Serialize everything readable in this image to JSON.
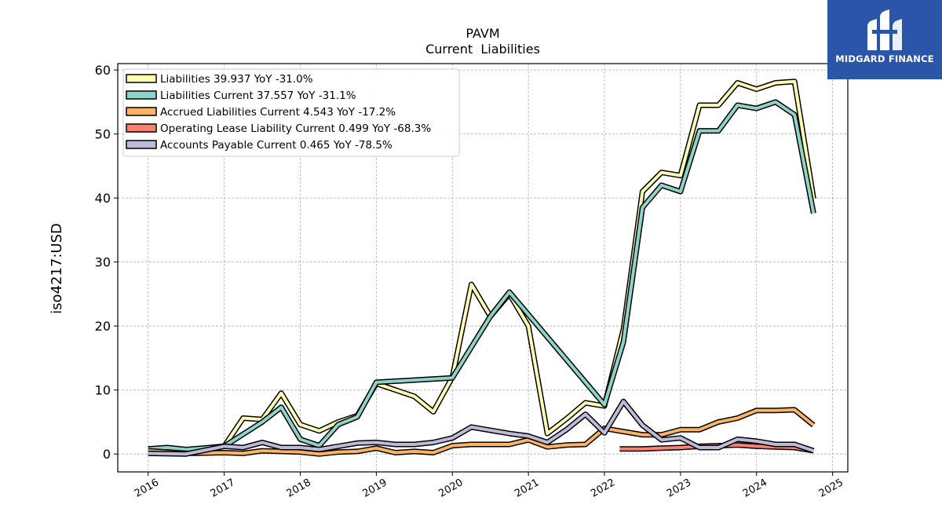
{
  "chart_data": {
    "type": "line",
    "title": "PAVM",
    "subtitle": "Current  Liabilities",
    "ylabel": "iso4217:USD",
    "xlabel": "",
    "ylim": [
      -2.8,
      61
    ],
    "xlim": [
      2015.6,
      2025.2
    ],
    "yticks": [
      0,
      10,
      20,
      30,
      40,
      50,
      60
    ],
    "xticks": [
      2016,
      2017,
      2018,
      2019,
      2020,
      2021,
      2022,
      2023,
      2024,
      2025
    ],
    "grid": true,
    "legend_position": "top-left",
    "series": [
      {
        "name": "Liabilities  39.937 YoY -31.0%",
        "color": "#ffffb3",
        "points": [
          [
            2016.0,
            0.8
          ],
          [
            2016.5,
            0.6
          ],
          [
            2017.0,
            1.2
          ],
          [
            2017.25,
            5.6
          ],
          [
            2017.5,
            5.4
          ],
          [
            2017.75,
            9.5
          ],
          [
            2018.0,
            4.6
          ],
          [
            2018.25,
            3.6
          ],
          [
            2018.5,
            5.0
          ],
          [
            2018.75,
            6.0
          ],
          [
            2019.0,
            11.0
          ],
          [
            2019.5,
            9.0
          ],
          [
            2019.75,
            6.6
          ],
          [
            2020.0,
            12.0
          ],
          [
            2020.25,
            26.5
          ],
          [
            2020.5,
            21.5
          ],
          [
            2020.75,
            25.0
          ],
          [
            2021.0,
            20.0
          ],
          [
            2021.25,
            3.2
          ],
          [
            2021.5,
            5.5
          ],
          [
            2021.75,
            8.0
          ],
          [
            2022.0,
            7.5
          ],
          [
            2022.25,
            19.5
          ],
          [
            2022.5,
            41.0
          ],
          [
            2022.75,
            44.0
          ],
          [
            2023.0,
            43.5
          ],
          [
            2023.25,
            54.5
          ],
          [
            2023.5,
            54.5
          ],
          [
            2023.75,
            58.0
          ],
          [
            2024.0,
            57.0
          ],
          [
            2024.25,
            58.0
          ],
          [
            2024.5,
            58.2
          ],
          [
            2024.75,
            39.9
          ]
        ]
      },
      {
        "name": "Liabilities Current  37.557 YoY -31.1%",
        "color": "#8dd3c7",
        "points": [
          [
            2016.0,
            0.8
          ],
          [
            2016.25,
            1.0
          ],
          [
            2016.5,
            0.7
          ],
          [
            2017.0,
            1.2
          ],
          [
            2017.5,
            5.0
          ],
          [
            2017.75,
            7.3
          ],
          [
            2018.0,
            2.3
          ],
          [
            2018.25,
            1.3
          ],
          [
            2018.5,
            4.6
          ],
          [
            2018.75,
            5.8
          ],
          [
            2019.0,
            11.2
          ],
          [
            2020.0,
            11.9
          ],
          [
            2020.5,
            21.5
          ],
          [
            2020.75,
            25.3
          ],
          [
            2022.0,
            7.7
          ],
          [
            2022.25,
            17.5
          ],
          [
            2022.5,
            38.5
          ],
          [
            2022.75,
            42.0
          ],
          [
            2023.0,
            41.0
          ],
          [
            2023.25,
            50.5
          ],
          [
            2023.5,
            50.5
          ],
          [
            2023.75,
            54.5
          ],
          [
            2024.0,
            54.0
          ],
          [
            2024.25,
            55.0
          ],
          [
            2024.5,
            53.0
          ],
          [
            2024.75,
            37.6
          ]
        ]
      },
      {
        "name": "Accrued Liabilities Current  4.543 YoY -17.2%",
        "color": "#fdb462",
        "points": [
          [
            2016.0,
            0.5
          ],
          [
            2016.5,
            0.1
          ],
          [
            2017.0,
            0.2
          ],
          [
            2017.25,
            0.1
          ],
          [
            2017.5,
            0.5
          ],
          [
            2017.75,
            0.4
          ],
          [
            2018.0,
            0.3
          ],
          [
            2018.25,
            0.0
          ],
          [
            2018.5,
            0.3
          ],
          [
            2018.75,
            0.4
          ],
          [
            2019.0,
            0.9
          ],
          [
            2019.25,
            0.2
          ],
          [
            2019.5,
            0.4
          ],
          [
            2019.75,
            0.2
          ],
          [
            2020.0,
            1.3
          ],
          [
            2020.25,
            1.5
          ],
          [
            2020.75,
            1.5
          ],
          [
            2021.0,
            2.2
          ],
          [
            2021.25,
            1.1
          ],
          [
            2021.5,
            1.4
          ],
          [
            2021.75,
            1.5
          ],
          [
            2022.0,
            4.0
          ],
          [
            2022.25,
            3.5
          ],
          [
            2022.5,
            3.0
          ],
          [
            2022.75,
            3.0
          ],
          [
            2023.0,
            3.8
          ],
          [
            2023.25,
            3.8
          ],
          [
            2023.5,
            5.0
          ],
          [
            2023.75,
            5.6
          ],
          [
            2024.0,
            6.8
          ],
          [
            2024.25,
            6.8
          ],
          [
            2024.5,
            6.9
          ],
          [
            2024.75,
            4.5
          ]
        ]
      },
      {
        "name": "Operating Lease Liability Current  0.499 YoY -68.3%",
        "color": "#fb8072",
        "points": [
          [
            2022.2,
            0.8
          ],
          [
            2022.5,
            0.8
          ],
          [
            2022.75,
            0.9
          ],
          [
            2023.0,
            1.0
          ],
          [
            2023.25,
            1.2
          ],
          [
            2023.5,
            1.3
          ],
          [
            2023.75,
            1.4
          ],
          [
            2024.0,
            1.2
          ],
          [
            2024.25,
            1.1
          ],
          [
            2024.5,
            1.0
          ],
          [
            2024.75,
            0.5
          ]
        ]
      },
      {
        "name": "Accounts Payable Current  0.465 YoY -78.5%",
        "color": "#bebada",
        "points": [
          [
            2016.0,
            0.1
          ],
          [
            2016.5,
            0.0
          ],
          [
            2017.0,
            1.2
          ],
          [
            2017.25,
            1.0
          ],
          [
            2017.5,
            1.8
          ],
          [
            2017.75,
            1.0
          ],
          [
            2018.0,
            1.0
          ],
          [
            2018.25,
            0.7
          ],
          [
            2018.5,
            1.2
          ],
          [
            2018.75,
            1.7
          ],
          [
            2019.0,
            1.8
          ],
          [
            2019.25,
            1.5
          ],
          [
            2019.5,
            1.5
          ],
          [
            2019.75,
            1.8
          ],
          [
            2020.0,
            2.5
          ],
          [
            2020.25,
            4.2
          ],
          [
            2020.75,
            3.2
          ],
          [
            2021.0,
            2.8
          ],
          [
            2021.25,
            1.8
          ],
          [
            2021.5,
            3.8
          ],
          [
            2021.75,
            6.2
          ],
          [
            2022.0,
            3.3
          ],
          [
            2022.25,
            8.2
          ],
          [
            2022.5,
            4.5
          ],
          [
            2022.75,
            2.2
          ],
          [
            2023.0,
            2.5
          ],
          [
            2023.25,
            1.0
          ],
          [
            2023.5,
            1.0
          ],
          [
            2023.75,
            2.3
          ],
          [
            2024.0,
            2.0
          ],
          [
            2024.25,
            1.5
          ],
          [
            2024.5,
            1.5
          ],
          [
            2024.75,
            0.5
          ]
        ]
      }
    ]
  },
  "logo": {
    "text": "MIDGARD FINANCE",
    "icon": "midgard-logo-icon",
    "background": "#2a55a8"
  }
}
